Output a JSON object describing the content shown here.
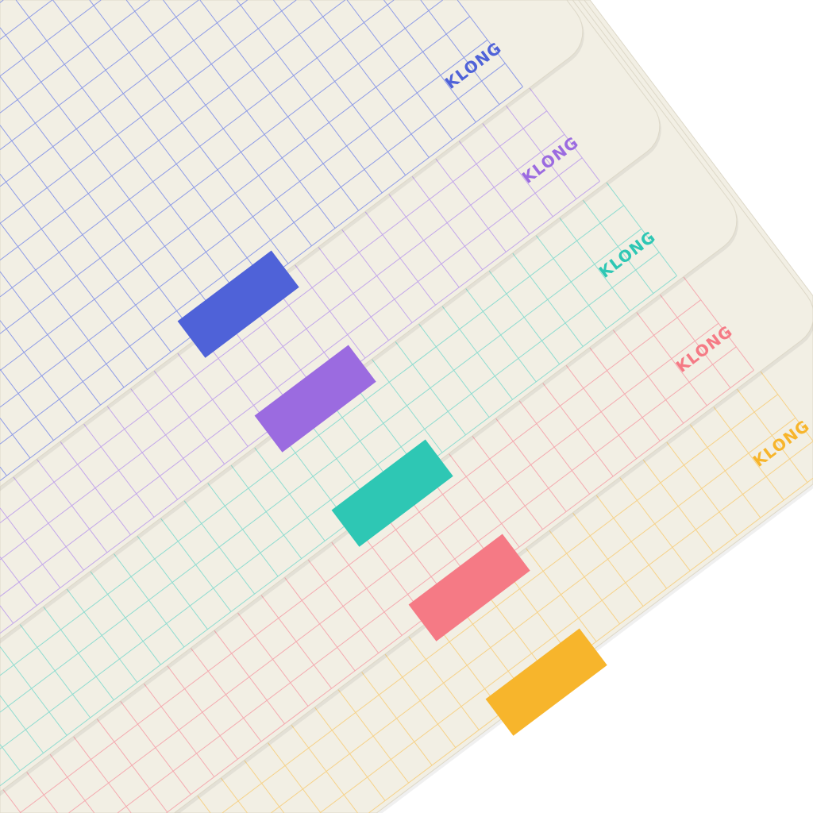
{
  "photo": {
    "background": "#ffffff",
    "paper_color": "#f2efe4",
    "notebooks": [
      {
        "name": "blue",
        "logo": "KLONG",
        "accent": "#4f62d8",
        "grid": "#8e9be6"
      },
      {
        "name": "purple",
        "logo": "KLONG",
        "accent": "#9b6be0",
        "grid": "#c3a7ea"
      },
      {
        "name": "teal",
        "logo": "KLONG",
        "accent": "#2ec7b4",
        "grid": "#8fdcd0"
      },
      {
        "name": "pink",
        "logo": "KLONG",
        "accent": "#f57a85",
        "grid": "#f4aab0"
      },
      {
        "name": "yellow",
        "logo": "KLONG",
        "accent": "#f7b52c",
        "grid": "#f6d289"
      }
    ]
  }
}
